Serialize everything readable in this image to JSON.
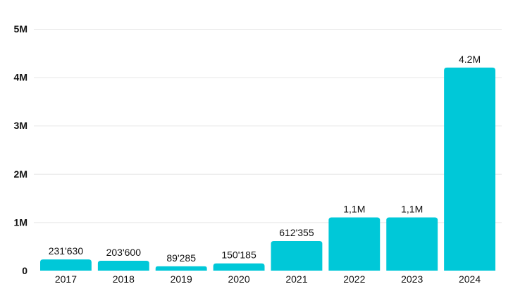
{
  "chart_data": {
    "type": "bar",
    "categories": [
      "2017",
      "2018",
      "2019",
      "2020",
      "2021",
      "2022",
      "2023",
      "2024"
    ],
    "values": [
      231630,
      203600,
      89285,
      150185,
      612355,
      1100000,
      1100000,
      4200000
    ],
    "data_labels": [
      "231'630",
      "203'600",
      "89'285",
      "150'185",
      "612'355",
      "1,1M",
      "1,1M",
      "4.2M"
    ],
    "yticks": [
      0,
      1000000,
      2000000,
      3000000,
      4000000,
      5000000
    ],
    "ytick_labels": [
      "0",
      "1M",
      "2M",
      "3M",
      "4M",
      "5M"
    ],
    "ylim": [
      0,
      5000000
    ],
    "grid": true,
    "bar_color": "#00c8d8",
    "title": "",
    "xlabel": "",
    "ylabel": ""
  }
}
